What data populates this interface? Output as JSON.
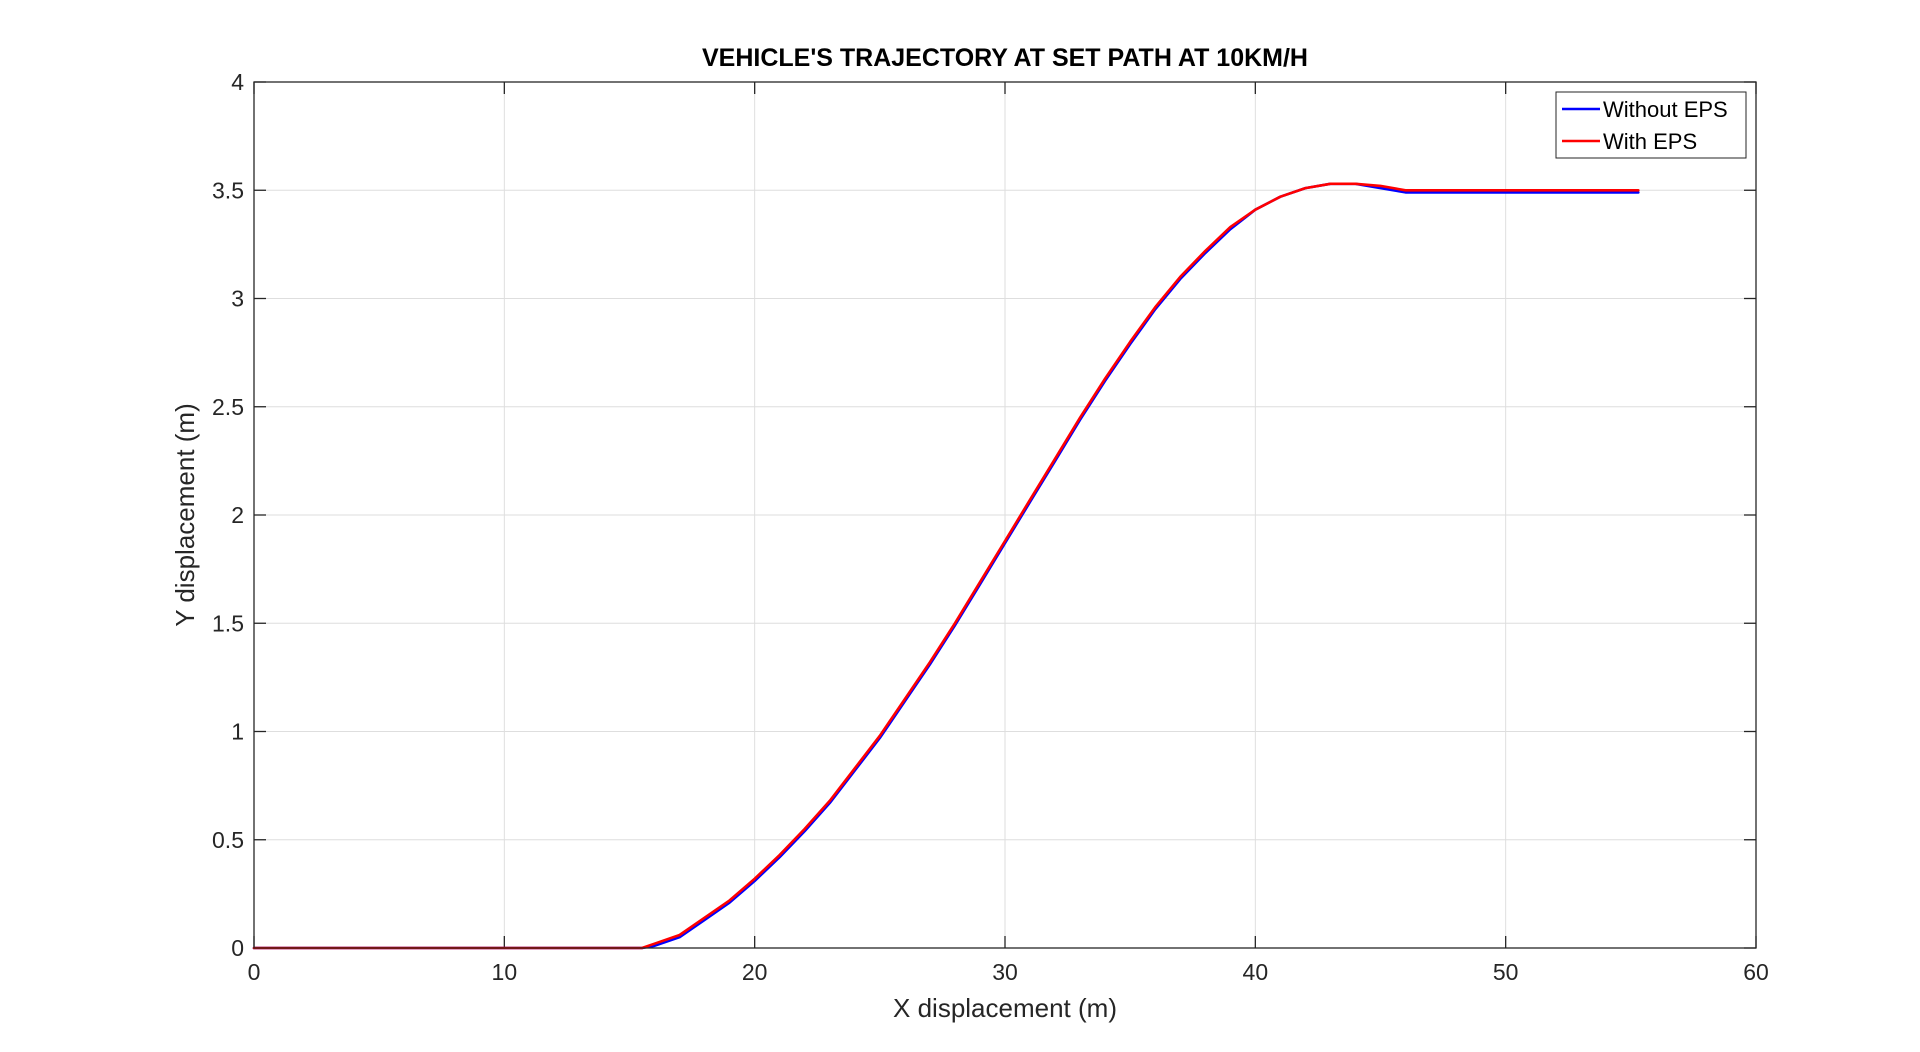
{
  "chart_data": {
    "type": "line",
    "title": "VEHICLE'S TRAJECTORY AT SET PATH AT 10KM/H",
    "xlabel": "X displacement (m)",
    "ylabel": "Y displacement (m)",
    "xlim": [
      0,
      60
    ],
    "ylim": [
      0,
      4
    ],
    "xticks": [
      0,
      10,
      20,
      30,
      40,
      50,
      60
    ],
    "yticks": [
      0,
      0.5,
      1,
      1.5,
      2,
      2.5,
      3,
      3.5,
      4
    ],
    "xtick_labels": [
      "0",
      "10",
      "20",
      "30",
      "40",
      "50",
      "60"
    ],
    "ytick_labels": [
      "0",
      "0.5",
      "1",
      "1.5",
      "2",
      "2.5",
      "3",
      "3.5",
      "4"
    ],
    "grid": true,
    "legend_position": "top-right",
    "series": [
      {
        "name": "Without EPS",
        "color": "#0000ff",
        "x": [
          0,
          5,
          10,
          15,
          15.5,
          16,
          17,
          18,
          19,
          20,
          21,
          22,
          23,
          24,
          25,
          26,
          27,
          28,
          29,
          30,
          31,
          32,
          33,
          34,
          35,
          36,
          37,
          38,
          39,
          40,
          41,
          42,
          43,
          44,
          45,
          46,
          47,
          48,
          50,
          52,
          54,
          55.3
        ],
        "y": [
          0,
          0,
          0,
          0,
          0,
          0.01,
          0.05,
          0.13,
          0.21,
          0.31,
          0.42,
          0.54,
          0.67,
          0.82,
          0.97,
          1.14,
          1.31,
          1.49,
          1.68,
          1.87,
          2.06,
          2.25,
          2.44,
          2.62,
          2.79,
          2.95,
          3.09,
          3.21,
          3.32,
          3.41,
          3.47,
          3.51,
          3.53,
          3.53,
          3.51,
          3.49,
          3.49,
          3.49,
          3.49,
          3.49,
          3.49,
          3.49
        ]
      },
      {
        "name": "With EPS",
        "color": "#ff0000",
        "x": [
          0,
          5,
          10,
          15,
          15.5,
          16,
          17,
          18,
          19,
          20,
          21,
          22,
          23,
          24,
          25,
          26,
          27,
          28,
          29,
          30,
          31,
          32,
          33,
          34,
          35,
          36,
          37,
          38,
          39,
          40,
          41,
          42,
          43,
          44,
          45,
          46,
          47,
          48,
          50,
          52,
          54,
          55.3
        ],
        "y": [
          0,
          0,
          0,
          0,
          0,
          0.02,
          0.06,
          0.14,
          0.22,
          0.32,
          0.43,
          0.55,
          0.68,
          0.83,
          0.98,
          1.15,
          1.32,
          1.5,
          1.69,
          1.88,
          2.07,
          2.26,
          2.45,
          2.63,
          2.8,
          2.96,
          3.1,
          3.22,
          3.33,
          3.41,
          3.47,
          3.51,
          3.53,
          3.53,
          3.52,
          3.5,
          3.5,
          3.5,
          3.5,
          3.5,
          3.5,
          3.5
        ]
      }
    ]
  }
}
